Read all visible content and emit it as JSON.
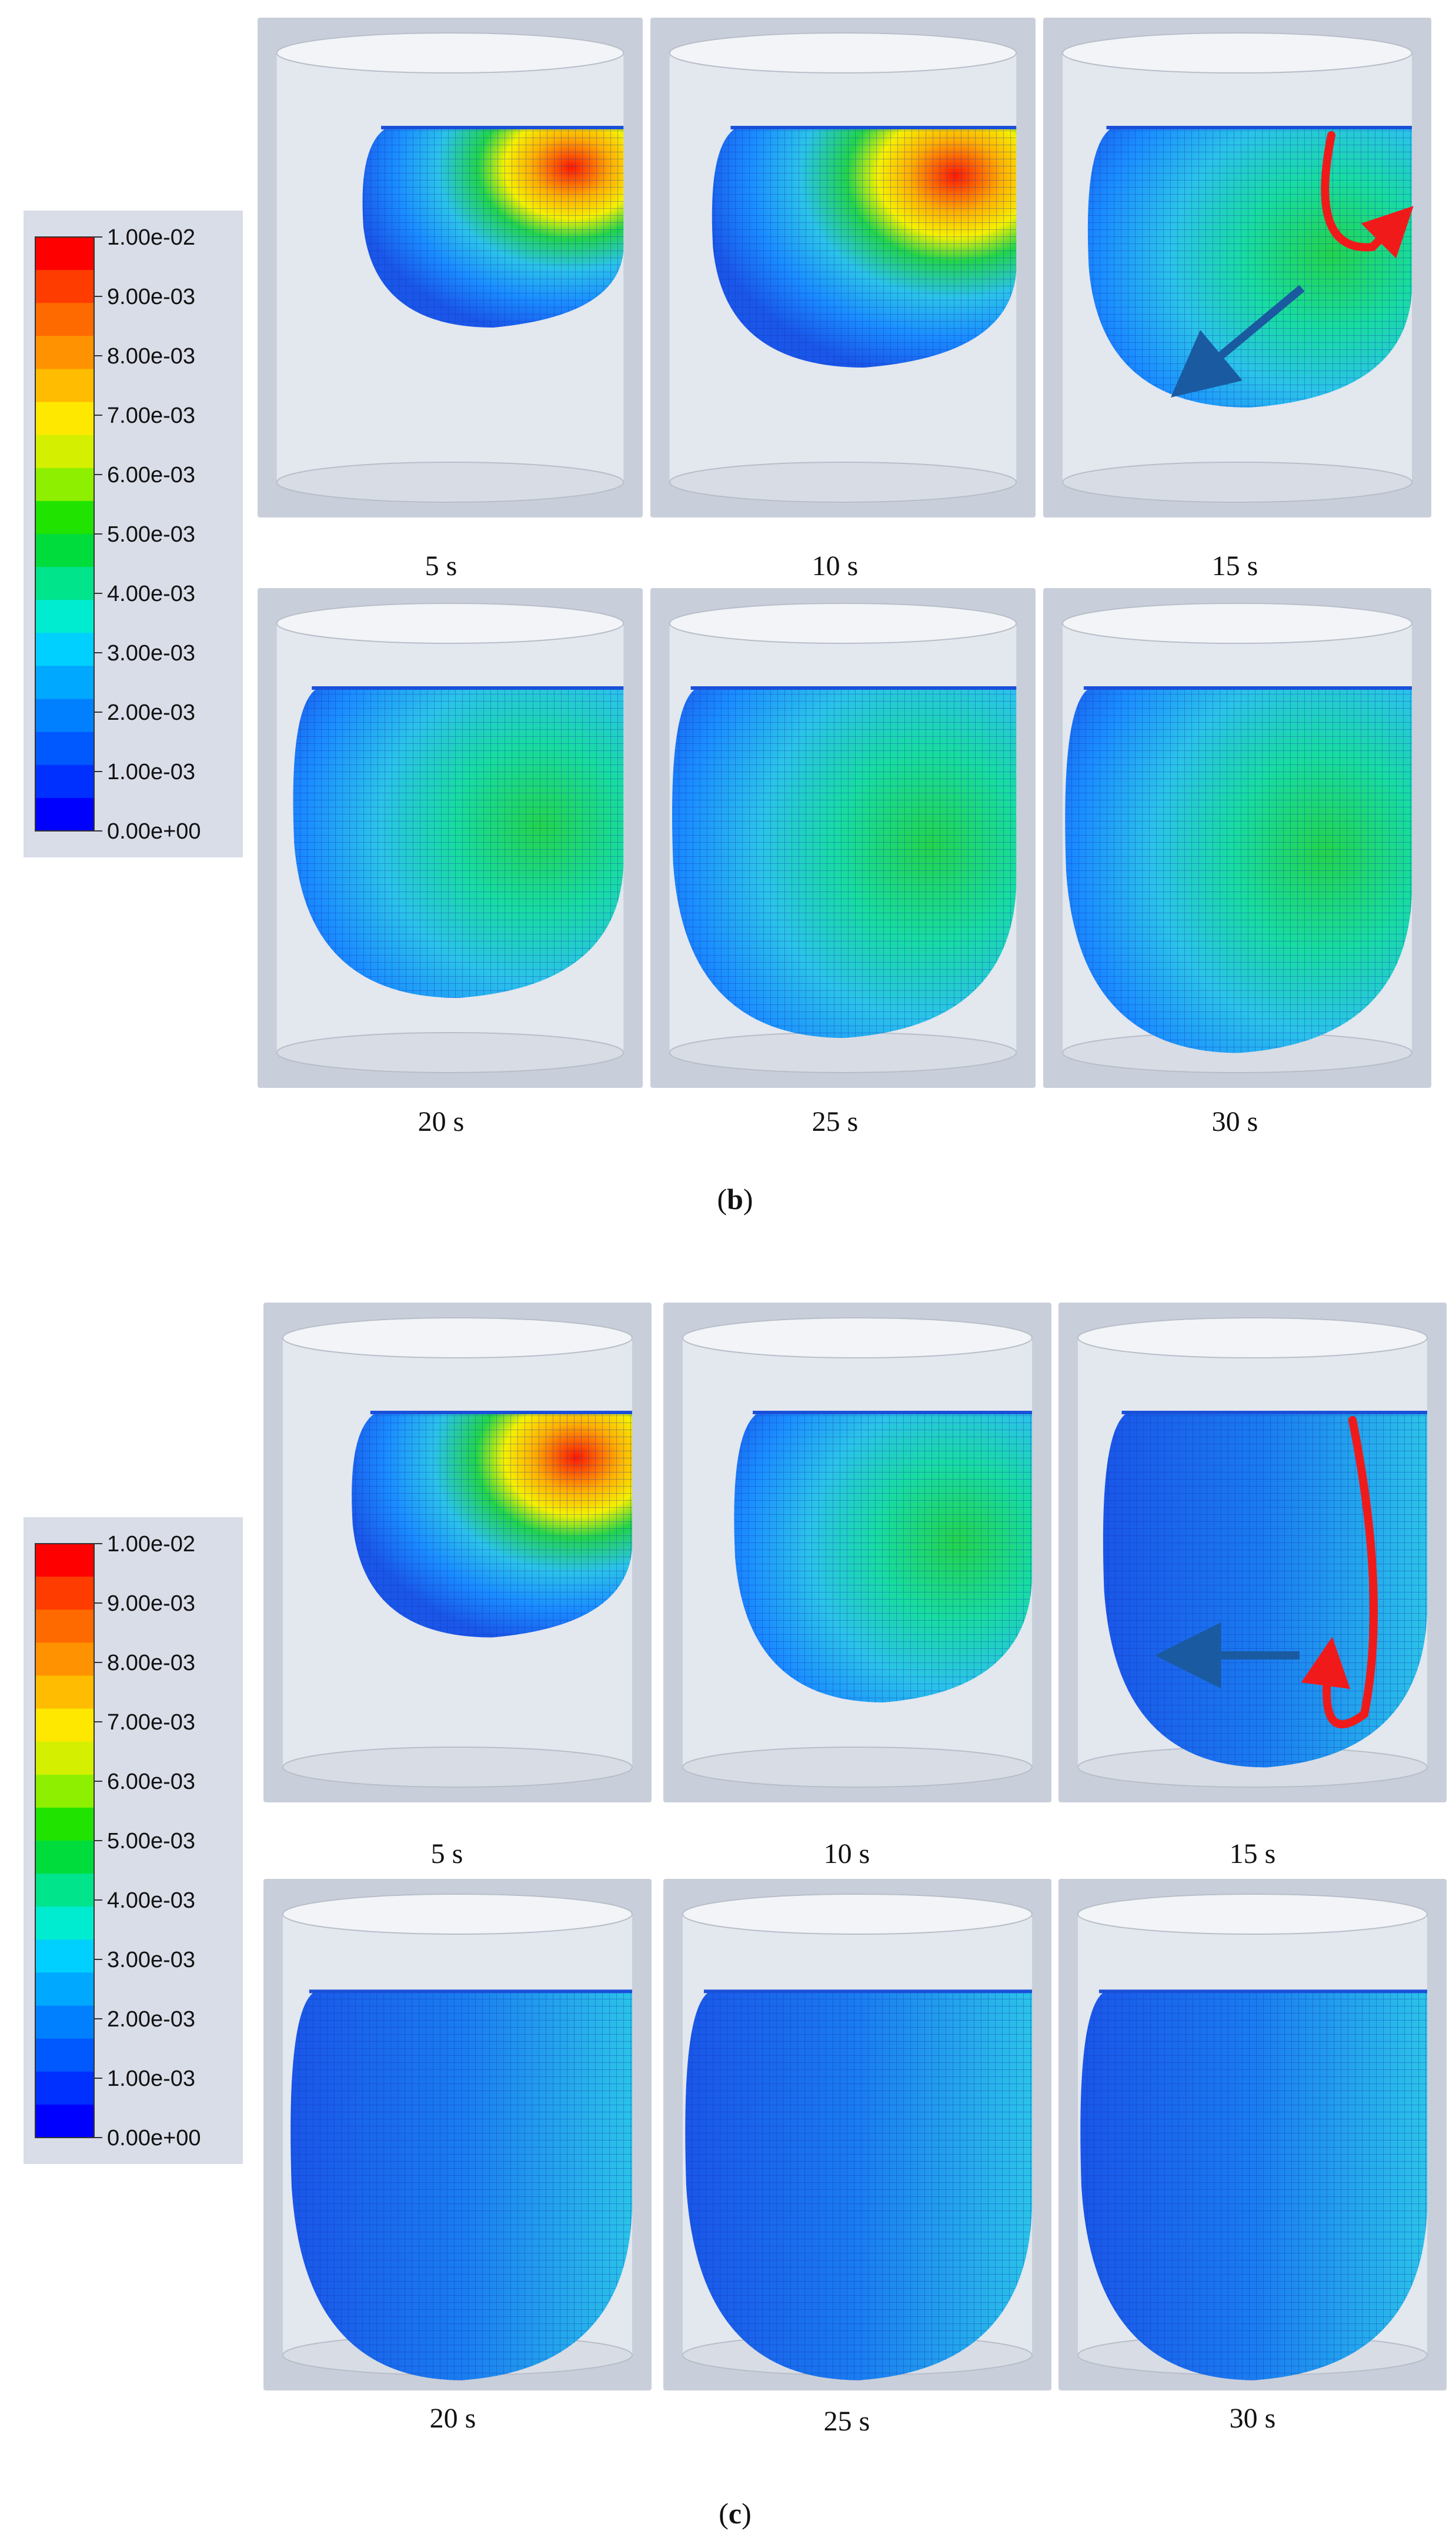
{
  "legend": {
    "ticks": [
      "1.00e-02",
      "9.00e-03",
      "8.00e-03",
      "7.00e-03",
      "6.00e-03",
      "5.00e-03",
      "4.00e-03",
      "3.00e-03",
      "2.00e-03",
      "1.00e-03",
      "0.00e+00"
    ],
    "colors": [
      "#ff0000",
      "#ff3c00",
      "#ff6a00",
      "#ff9200",
      "#ffbc00",
      "#ffe800",
      "#d4f000",
      "#8ef000",
      "#20e400",
      "#00dc3c",
      "#00e48c",
      "#00ecd0",
      "#00d0ff",
      "#00a8ff",
      "#0080ff",
      "#0058ff",
      "#0030ff",
      "#0000ff"
    ]
  },
  "panel_b": {
    "label_open": "(",
    "label_letter": "b",
    "label_close": ")",
    "times": [
      "5 s",
      "10 s",
      "15 s",
      "20 s",
      "25 s",
      "30 s"
    ]
  },
  "panel_c": {
    "label_open": "(",
    "label_letter": "c",
    "label_close": ")",
    "times": [
      "5 s",
      "10 s",
      "15 s",
      "20 s",
      "25 s",
      "30 s"
    ]
  },
  "palette": {
    "frame_bg": "#c9cfda",
    "cylinder": "#e6e9ef",
    "contour_low": "#1a56e8",
    "contour_mid": "#2bc3e8",
    "contour_green": "#22d44a",
    "contour_high": "#ff1a00",
    "red_arrow": "#f01a1a",
    "blue_arrow": "#1a5aa0"
  }
}
